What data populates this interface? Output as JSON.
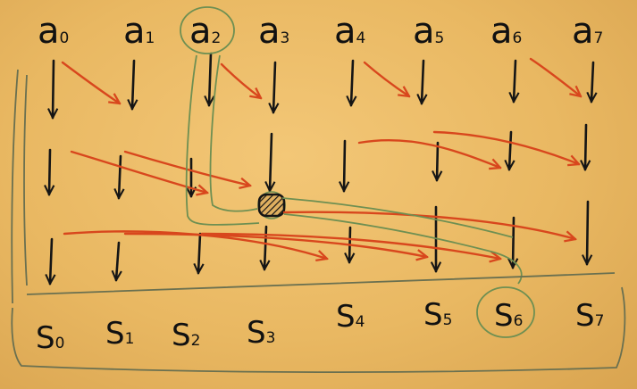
{
  "inputs": [
    {
      "letter": "a",
      "sub": "0"
    },
    {
      "letter": "a",
      "sub": "1"
    },
    {
      "letter": "a",
      "sub": "2"
    },
    {
      "letter": "a",
      "sub": "3"
    },
    {
      "letter": "a",
      "sub": "4"
    },
    {
      "letter": "a",
      "sub": "5"
    },
    {
      "letter": "a",
      "sub": "6"
    },
    {
      "letter": "a",
      "sub": "7"
    }
  ],
  "outputs": [
    {
      "letter": "S",
      "sub": "0"
    },
    {
      "letter": "S",
      "sub": "1"
    },
    {
      "letter": "S",
      "sub": "2"
    },
    {
      "letter": "S",
      "sub": "3"
    },
    {
      "letter": "S",
      "sub": "4"
    },
    {
      "letter": "S",
      "sub": "5"
    },
    {
      "letter": "S",
      "sub": "6"
    },
    {
      "letter": "S",
      "sub": "7"
    }
  ],
  "highlight": {
    "input_index": 2,
    "output_index": 6
  },
  "colors": {
    "ink": "#151515",
    "red_marker": "#d8471d",
    "green_marker": "#6e8f52",
    "board": "#efc06c"
  }
}
